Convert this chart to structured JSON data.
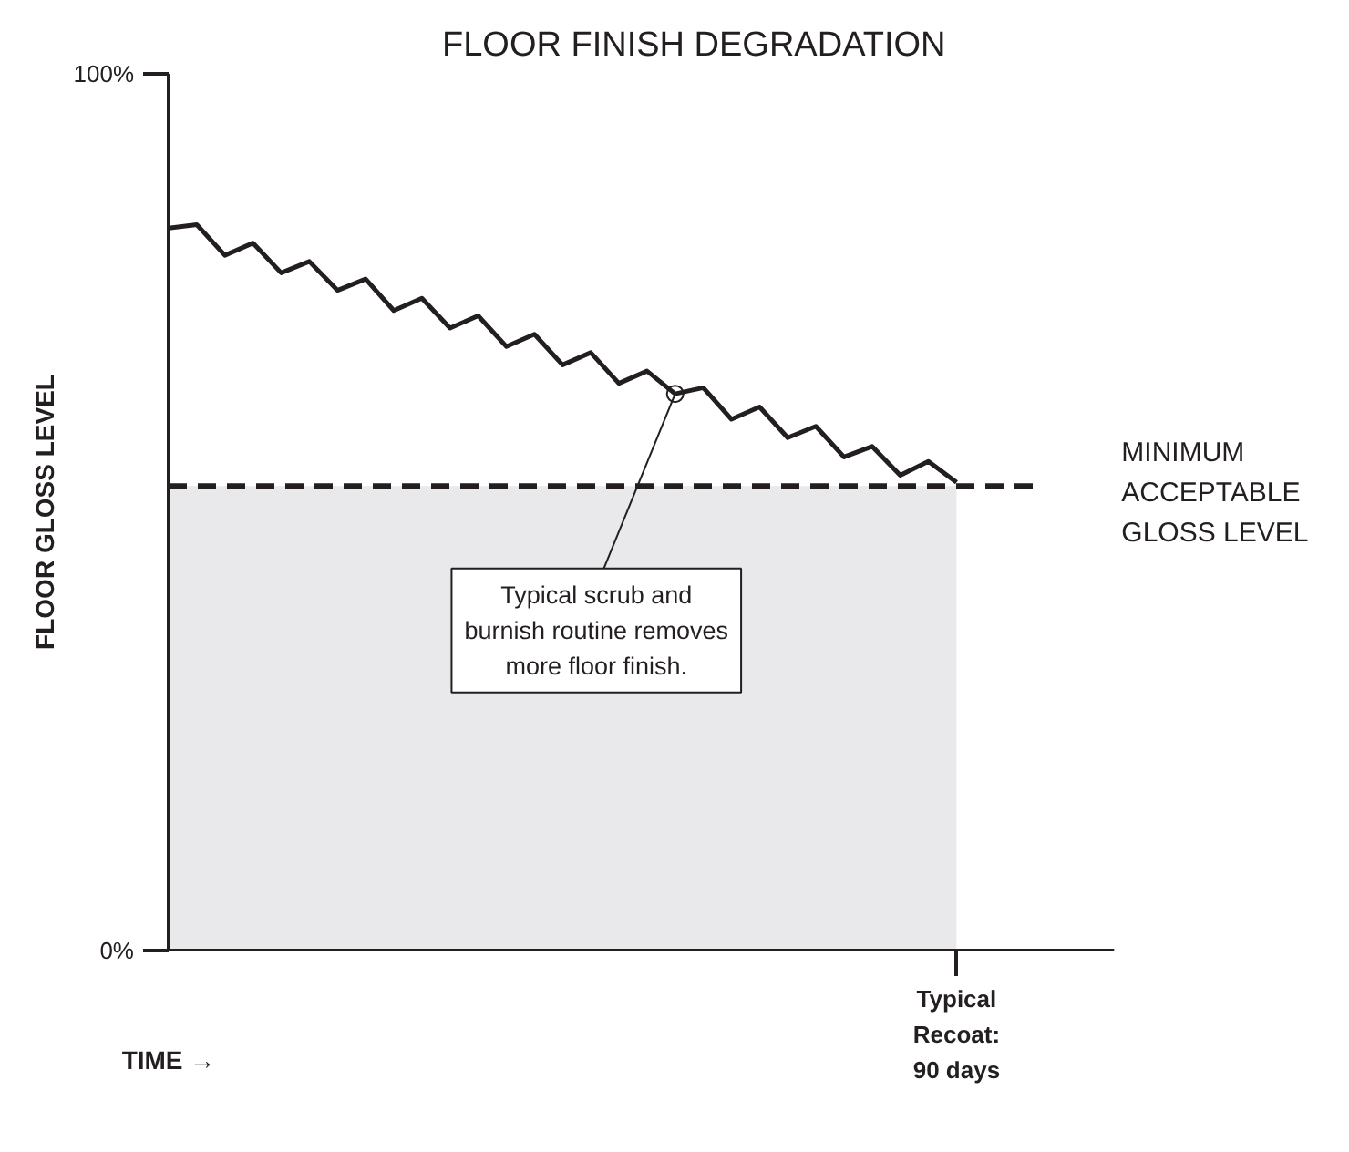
{
  "chart_data": {
    "type": "line",
    "title": "FLOOR FINISH DEGRADATION",
    "xlabel": "TIME →",
    "ylabel": "FLOOR GLOSS LEVEL",
    "categories": [
      null,
      null,
      null,
      null,
      null,
      null,
      null,
      null,
      null,
      null,
      null,
      null,
      null,
      null,
      null,
      null,
      null,
      null,
      null,
      null,
      null,
      null,
      null,
      null,
      null,
      null,
      null,
      null,
      null
    ],
    "series": [
      {
        "type": "area",
        "color": "#e9e9eb",
        "values": [
          53,
          53,
          53,
          53,
          53,
          53,
          53,
          53,
          53,
          53,
          53,
          53,
          53,
          53,
          53,
          53,
          53,
          53,
          53,
          53,
          53,
          53,
          53,
          53,
          53,
          53,
          53,
          53,
          53
        ]
      },
      {
        "type": "line",
        "color": "#231f20",
        "values": [
          82.4,
          82.8,
          79.3,
          80.7,
          77.3,
          78.6,
          75.3,
          76.6,
          73.0,
          74.4,
          71.0,
          72.4,
          68.9,
          70.3,
          66.8,
          68.2,
          64.7,
          66.1,
          63.5,
          64.2,
          60.6,
          62.0,
          58.5,
          59.8,
          56.3,
          57.5,
          54.2,
          55.8,
          53.4
        ]
      }
    ],
    "ylim": [
      0,
      100
    ],
    "yticks": [
      {
        "value": 0,
        "label": "0%"
      },
      {
        "value": 100,
        "label": "100%"
      }
    ],
    "ref_lines": [
      {
        "axis": "y",
        "value": 53,
        "label": "MINIMUM\nACCEPTABLE\nGLOSS LEVEL",
        "color": "#231f20",
        "line_style": "dashed"
      }
    ],
    "annotations": [
      "Typical scrub and\nburnish routine removes\nmore floor finish.",
      "Typical\nRecoat:\n90 days"
    ],
    "grid": false,
    "marker": "none",
    "line_style": "solid"
  }
}
